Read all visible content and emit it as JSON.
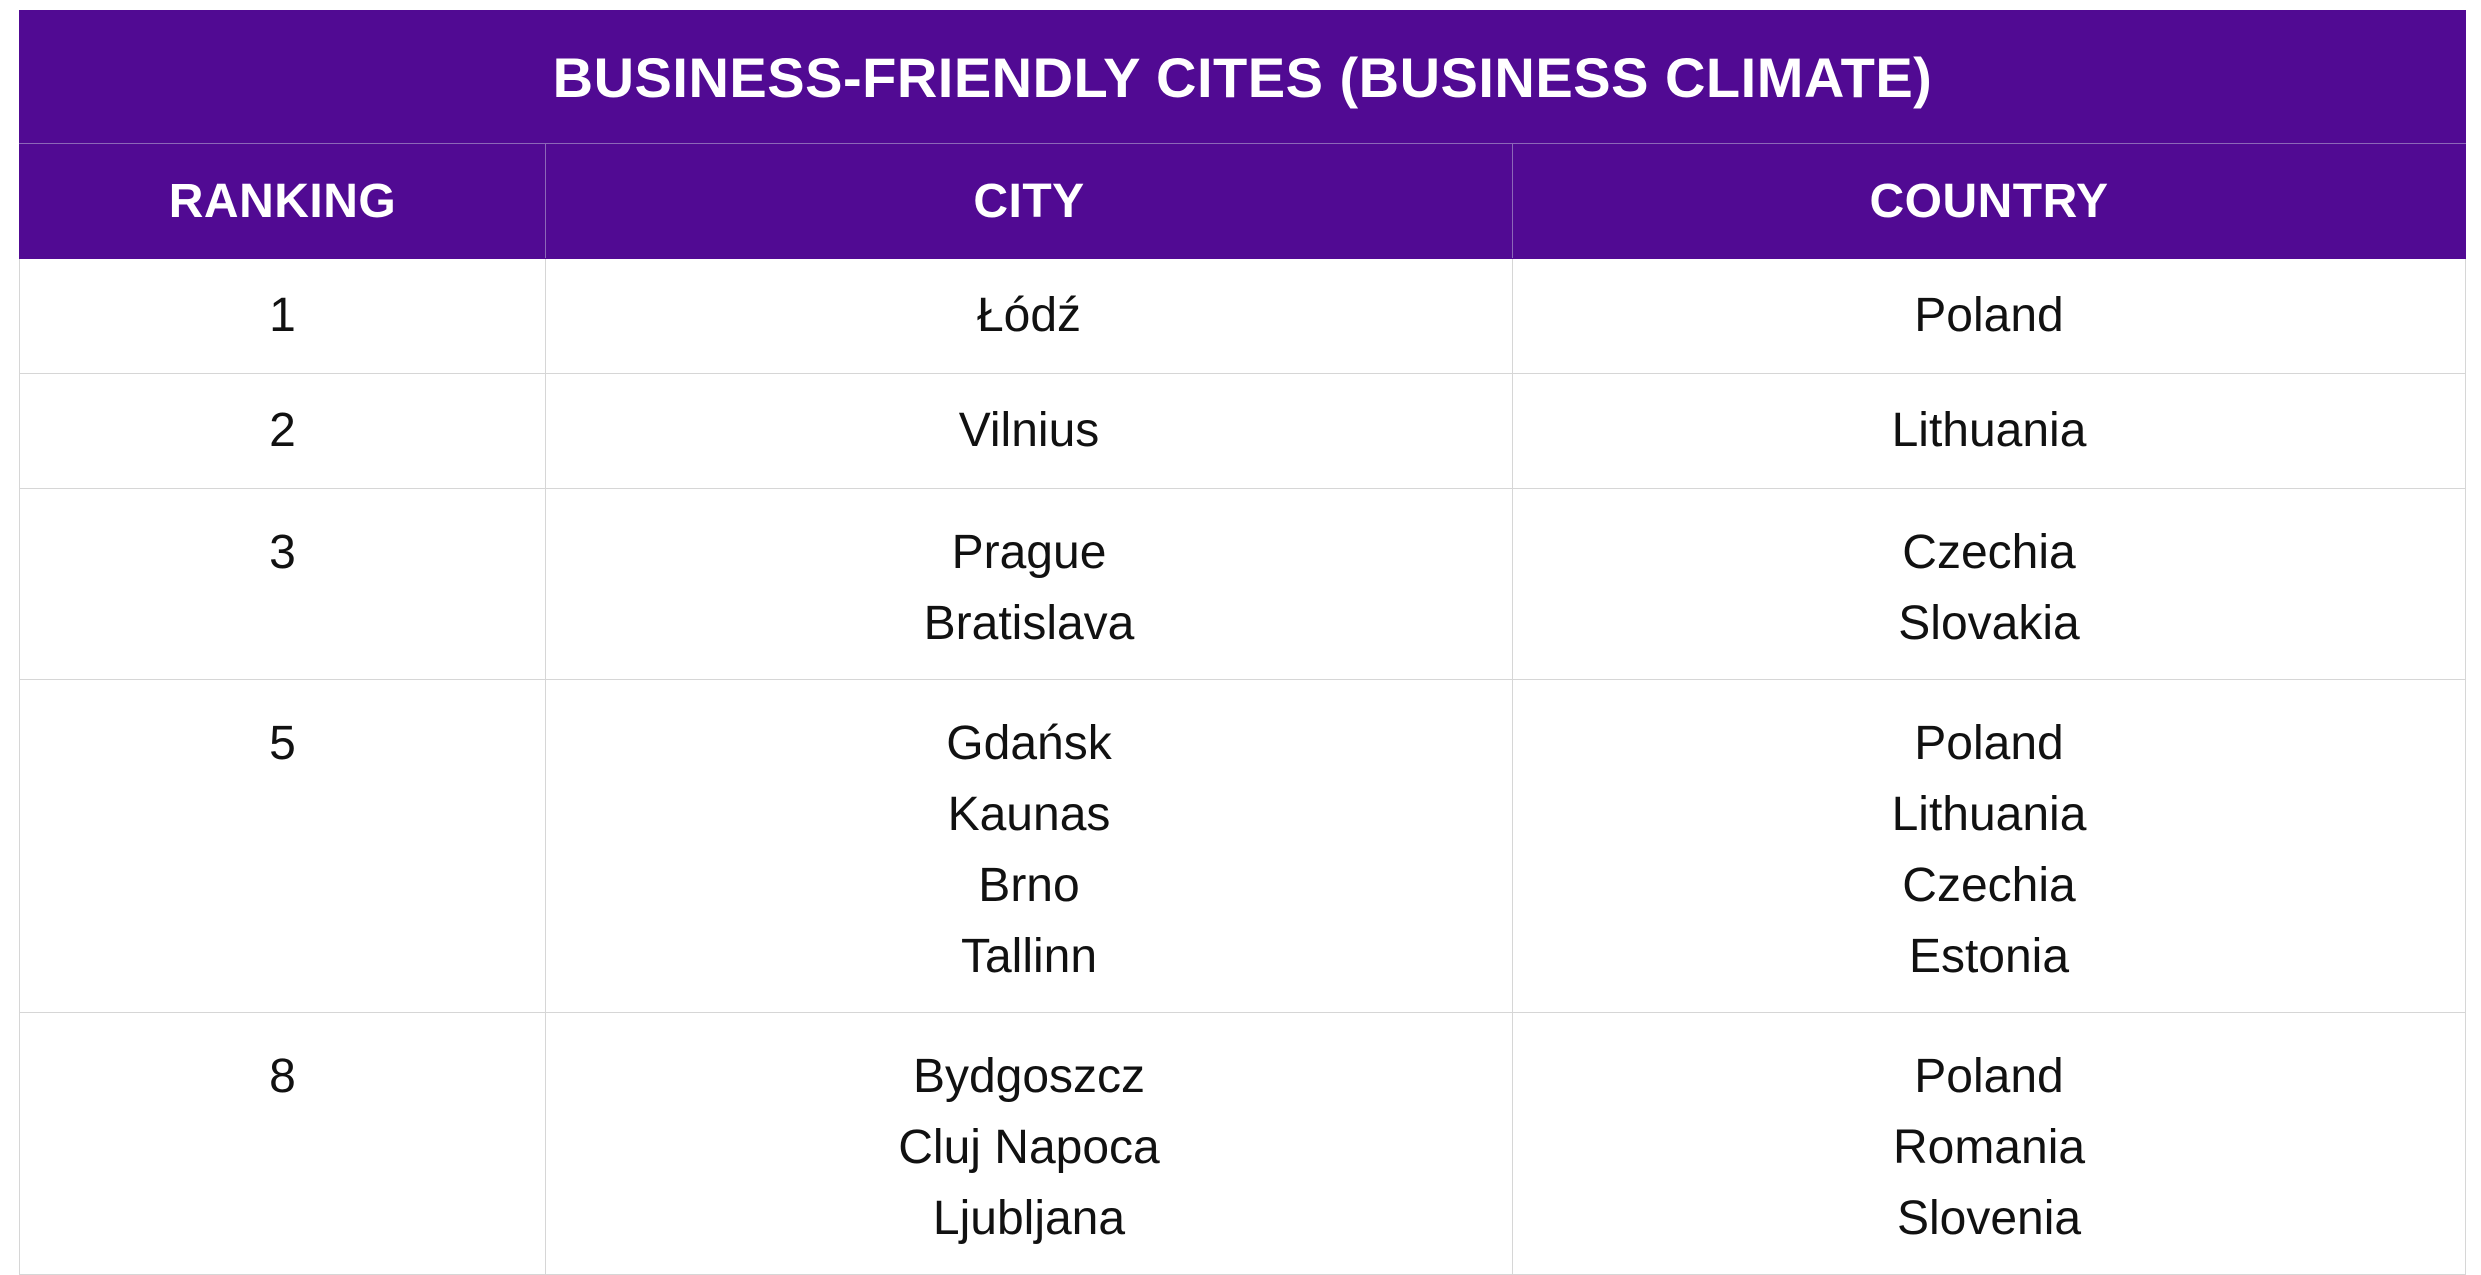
{
  "title": "BUSINESS-FRIENDLY CITES (BUSINESS CLIMATE)",
  "headers": {
    "ranking": "RANKING",
    "city": "CITY",
    "country": "COUNTRY"
  },
  "colors": {
    "header_bg": "#510a93",
    "header_text": "#ffffff",
    "grid": "#d6d6d6",
    "body_text": "#111111"
  },
  "rows": [
    {
      "rank": "1",
      "cities": [
        "Łódź"
      ],
      "countries": [
        "Poland"
      ]
    },
    {
      "rank": "2",
      "cities": [
        "Vilnius"
      ],
      "countries": [
        "Lithuania"
      ]
    },
    {
      "rank": "3",
      "cities": [
        "Prague",
        "Bratislava"
      ],
      "countries": [
        "Czechia",
        "Slovakia"
      ]
    },
    {
      "rank": "5",
      "cities": [
        "Gdańsk",
        "Kaunas",
        "Brno",
        "Tallinn"
      ],
      "countries": [
        "Poland",
        "Lithuania",
        "Czechia",
        "Estonia"
      ]
    },
    {
      "rank": "8",
      "cities": [
        "Bydgoszcz",
        "Cluj Napoca",
        "Ljubljana"
      ],
      "countries": [
        "Poland",
        "Romania",
        "Slovenia"
      ]
    }
  ]
}
